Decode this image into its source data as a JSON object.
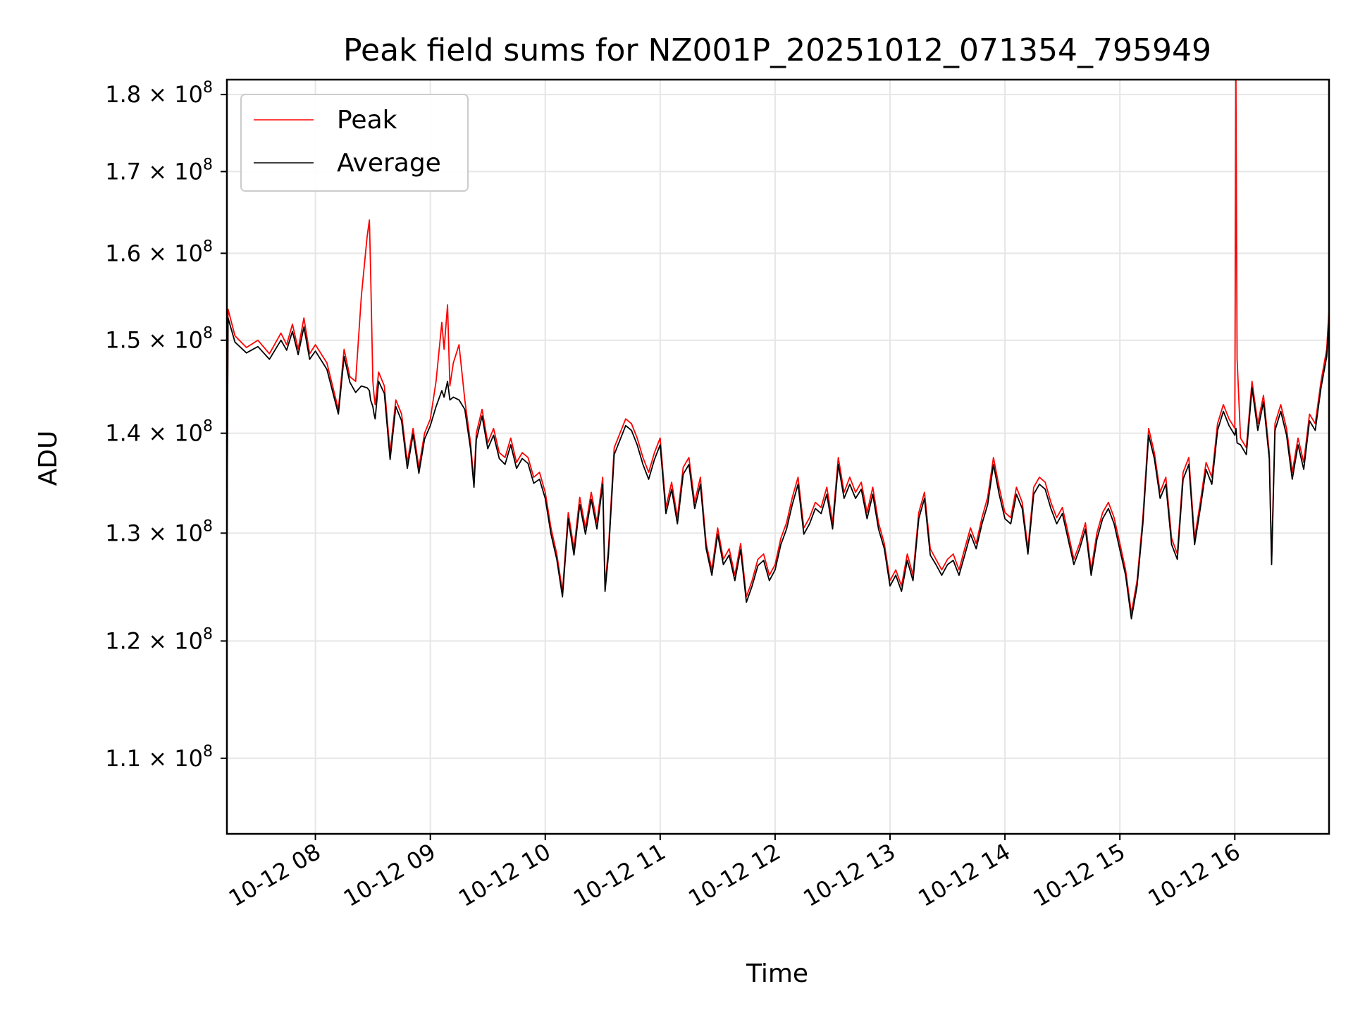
{
  "chart_data": {
    "type": "line",
    "title": "Peak field sums for NZ001P_20251012_071354_795949",
    "xlabel": "Time",
    "ylabel": "ADU",
    "yscale": "log",
    "ylim": [
      104000000,
      182000000
    ],
    "xlim_hours": [
      7.23,
      16.82
    ],
    "grid": true,
    "legend_position": "top-left",
    "x_ticks": [
      {
        "hour": 8,
        "label": "10-12 08"
      },
      {
        "hour": 9,
        "label": "10-12 09"
      },
      {
        "hour": 10,
        "label": "10-12 10"
      },
      {
        "hour": 11,
        "label": "10-12 11"
      },
      {
        "hour": 12,
        "label": "10-12 12"
      },
      {
        "hour": 13,
        "label": "10-12 13"
      },
      {
        "hour": 14,
        "label": "10-12 14"
      },
      {
        "hour": 15,
        "label": "10-12 15"
      },
      {
        "hour": 16,
        "label": "10-12 16"
      }
    ],
    "y_ticks": [
      {
        "value": 110000000,
        "mantissa": "1.1",
        "exponent": "8"
      },
      {
        "value": 120000000,
        "mantissa": "1.2",
        "exponent": "8"
      },
      {
        "value": 130000000,
        "mantissa": "1.3",
        "exponent": "8"
      },
      {
        "value": 140000000,
        "mantissa": "1.4",
        "exponent": "8"
      },
      {
        "value": 150000000,
        "mantissa": "1.5",
        "exponent": "8"
      },
      {
        "value": 160000000,
        "mantissa": "1.6",
        "exponent": "8"
      },
      {
        "value": 170000000,
        "mantissa": "1.7",
        "exponent": "8"
      },
      {
        "value": 180000000,
        "mantissa": "1.8",
        "exponent": "8"
      }
    ],
    "series": [
      {
        "name": "Peak",
        "color": "#ff0000",
        "x_hours": [
          7.23,
          7.24,
          7.3,
          7.4,
          7.5,
          7.6,
          7.7,
          7.75,
          7.8,
          7.85,
          7.9,
          7.95,
          8.0,
          8.1,
          8.15,
          8.2,
          8.25,
          8.3,
          8.35,
          8.4,
          8.45,
          8.47,
          8.48,
          8.5,
          8.51,
          8.52,
          8.55,
          8.6,
          8.65,
          8.7,
          8.75,
          8.8,
          8.85,
          8.9,
          8.95,
          9.0,
          9.05,
          9.1,
          9.12,
          9.15,
          9.17,
          9.2,
          9.25,
          9.3,
          9.35,
          9.38,
          9.4,
          9.45,
          9.5,
          9.55,
          9.6,
          9.65,
          9.7,
          9.75,
          9.8,
          9.85,
          9.9,
          9.95,
          10.0,
          10.05,
          10.1,
          10.15,
          10.2,
          10.25,
          10.3,
          10.35,
          10.4,
          10.45,
          10.5,
          10.52,
          10.55,
          10.6,
          10.65,
          10.7,
          10.75,
          10.8,
          10.85,
          10.9,
          10.95,
          11.0,
          11.05,
          11.1,
          11.15,
          11.2,
          11.25,
          11.3,
          11.35,
          11.4,
          11.45,
          11.5,
          11.55,
          11.6,
          11.65,
          11.7,
          11.75,
          11.8,
          11.85,
          11.9,
          11.95,
          12.0,
          12.05,
          12.1,
          12.15,
          12.2,
          12.25,
          12.3,
          12.35,
          12.4,
          12.45,
          12.5,
          12.55,
          12.6,
          12.65,
          12.7,
          12.75,
          12.8,
          12.85,
          12.9,
          12.95,
          13.0,
          13.05,
          13.1,
          13.15,
          13.2,
          13.25,
          13.3,
          13.35,
          13.4,
          13.45,
          13.5,
          13.55,
          13.6,
          13.65,
          13.7,
          13.75,
          13.8,
          13.85,
          13.9,
          13.95,
          14.0,
          14.05,
          14.1,
          14.15,
          14.2,
          14.25,
          14.3,
          14.35,
          14.4,
          14.45,
          14.5,
          14.55,
          14.6,
          14.65,
          14.7,
          14.75,
          14.8,
          14.85,
          14.9,
          14.95,
          15.0,
          15.05,
          15.1,
          15.15,
          15.2,
          15.25,
          15.3,
          15.35,
          15.4,
          15.45,
          15.5,
          15.55,
          15.6,
          15.65,
          15.7,
          15.75,
          15.8,
          15.85,
          15.9,
          15.95,
          16.0,
          16.01,
          16.02,
          16.05,
          16.1,
          16.15,
          16.2,
          16.25,
          16.3,
          16.32,
          16.35,
          16.4,
          16.45,
          16.5,
          16.55,
          16.6,
          16.65,
          16.7,
          16.75,
          16.8,
          16.82
        ],
        "values": [
          128000000,
          153500000,
          150500000,
          149200000,
          150000000,
          148500000,
          150800000,
          149500000,
          151800000,
          149000000,
          152500000,
          148500000,
          149500000,
          147500000,
          145000000,
          142500000,
          149000000,
          146000000,
          145500000,
          155000000,
          162000000,
          164000000,
          158000000,
          145500000,
          144000000,
          143000000,
          146500000,
          145000000,
          138000000,
          143500000,
          142000000,
          137000000,
          140500000,
          136500000,
          140000000,
          141500000,
          145500000,
          152000000,
          149000000,
          154000000,
          145000000,
          147500000,
          149500000,
          143500000,
          139000000,
          135000000,
          140000000,
          142500000,
          139000000,
          140500000,
          138000000,
          137500000,
          139500000,
          137000000,
          138000000,
          137500000,
          135500000,
          136000000,
          134000000,
          130500000,
          128000000,
          124500000,
          132000000,
          128500000,
          133500000,
          130500000,
          134000000,
          131000000,
          135500000,
          125000000,
          128500000,
          138500000,
          140000000,
          141500000,
          141000000,
          139500000,
          137500000,
          136000000,
          138000000,
          139500000,
          132500000,
          135000000,
          131500000,
          136500000,
          137500000,
          133000000,
          135500000,
          129000000,
          126500000,
          130500000,
          127500000,
          128500000,
          126000000,
          129000000,
          124000000,
          125500000,
          127500000,
          128000000,
          126000000,
          127000000,
          129500000,
          131000000,
          133500000,
          135500000,
          130500000,
          131500000,
          133000000,
          132500000,
          134500000,
          131000000,
          137500000,
          134000000,
          135500000,
          134000000,
          135000000,
          132000000,
          134500000,
          131000000,
          129000000,
          125500000,
          126500000,
          125000000,
          128000000,
          126000000,
          132000000,
          134000000,
          128500000,
          127500000,
          126500000,
          127500000,
          128000000,
          126500000,
          128500000,
          130500000,
          129000000,
          131500000,
          133500000,
          137500000,
          134500000,
          132000000,
          131500000,
          134500000,
          133000000,
          128500000,
          134500000,
          135500000,
          135000000,
          133000000,
          131500000,
          132500000,
          130000000,
          127500000,
          129000000,
          131000000,
          126500000,
          130000000,
          132000000,
          133000000,
          131500000,
          129000000,
          126500000,
          122500000,
          125500000,
          131500000,
          140500000,
          138000000,
          134000000,
          135500000,
          129500000,
          128000000,
          136000000,
          137500000,
          129500000,
          133000000,
          137000000,
          135500000,
          141000000,
          143000000,
          141500000,
          140500000,
          182000000,
          148000000,
          139500000,
          138500000,
          145500000,
          141000000,
          144000000,
          138000000,
          127500000,
          141000000,
          143000000,
          140500000,
          136000000,
          139500000,
          137000000,
          142000000,
          141000000,
          145500000,
          149000000,
          153500000
        ]
      },
      {
        "name": "Average",
        "color": "#000000",
        "x_hours": [
          7.23,
          7.24,
          7.3,
          7.4,
          7.5,
          7.6,
          7.7,
          7.75,
          7.8,
          7.85,
          7.9,
          7.95,
          8.0,
          8.1,
          8.15,
          8.2,
          8.25,
          8.3,
          8.35,
          8.4,
          8.45,
          8.47,
          8.48,
          8.5,
          8.51,
          8.52,
          8.55,
          8.6,
          8.65,
          8.7,
          8.75,
          8.8,
          8.85,
          8.9,
          8.95,
          9.0,
          9.05,
          9.1,
          9.12,
          9.15,
          9.17,
          9.2,
          9.25,
          9.3,
          9.35,
          9.38,
          9.4,
          9.45,
          9.5,
          9.55,
          9.6,
          9.65,
          9.7,
          9.75,
          9.8,
          9.85,
          9.9,
          9.95,
          10.0,
          10.05,
          10.1,
          10.15,
          10.2,
          10.25,
          10.3,
          10.35,
          10.4,
          10.45,
          10.5,
          10.52,
          10.55,
          10.6,
          10.65,
          10.7,
          10.75,
          10.8,
          10.85,
          10.9,
          10.95,
          11.0,
          11.05,
          11.1,
          11.15,
          11.2,
          11.25,
          11.3,
          11.35,
          11.4,
          11.45,
          11.5,
          11.55,
          11.6,
          11.65,
          11.7,
          11.75,
          11.8,
          11.85,
          11.9,
          11.95,
          12.0,
          12.05,
          12.1,
          12.15,
          12.2,
          12.25,
          12.3,
          12.35,
          12.4,
          12.45,
          12.5,
          12.55,
          12.6,
          12.65,
          12.7,
          12.75,
          12.8,
          12.85,
          12.9,
          12.95,
          13.0,
          13.05,
          13.1,
          13.15,
          13.2,
          13.25,
          13.3,
          13.35,
          13.4,
          13.45,
          13.5,
          13.55,
          13.6,
          13.65,
          13.7,
          13.75,
          13.8,
          13.85,
          13.9,
          13.95,
          14.0,
          14.05,
          14.1,
          14.15,
          14.2,
          14.25,
          14.3,
          14.35,
          14.4,
          14.45,
          14.5,
          14.55,
          14.6,
          14.65,
          14.7,
          14.75,
          14.8,
          14.85,
          14.9,
          14.95,
          15.0,
          15.05,
          15.1,
          15.15,
          15.2,
          15.25,
          15.3,
          15.35,
          15.4,
          15.45,
          15.5,
          15.55,
          15.6,
          15.65,
          15.7,
          15.75,
          15.8,
          15.85,
          15.9,
          15.95,
          16.0,
          16.01,
          16.02,
          16.05,
          16.1,
          16.15,
          16.2,
          16.25,
          16.3,
          16.32,
          16.35,
          16.4,
          16.45,
          16.5,
          16.55,
          16.6,
          16.65,
          16.7,
          16.75,
          16.8,
          16.82
        ],
        "values": [
          127500000,
          152500000,
          149800000,
          148600000,
          149300000,
          147900000,
          150000000,
          148900000,
          151000000,
          148400000,
          151500000,
          147900000,
          148800000,
          146800000,
          144400000,
          142000000,
          148200000,
          145400000,
          144300000,
          145000000,
          144800000,
          144500000,
          143500000,
          142800000,
          142000000,
          141500000,
          145500000,
          144200000,
          137300000,
          142800000,
          141300000,
          136400000,
          139900000,
          135900000,
          139400000,
          140800000,
          142800000,
          144500000,
          143800000,
          145500000,
          143500000,
          143800000,
          143500000,
          142500000,
          138400000,
          134500000,
          139300000,
          141800000,
          138400000,
          139800000,
          137400000,
          136800000,
          138800000,
          136400000,
          137400000,
          136900000,
          134900000,
          135300000,
          133400000,
          129900000,
          127500000,
          124000000,
          131400000,
          127900000,
          132800000,
          129900000,
          133300000,
          130400000,
          134800000,
          124500000,
          127900000,
          137800000,
          139300000,
          140800000,
          140300000,
          138800000,
          136800000,
          135300000,
          137300000,
          138800000,
          131900000,
          134300000,
          130900000,
          135800000,
          136800000,
          132400000,
          134800000,
          128500000,
          126000000,
          129900000,
          127000000,
          127900000,
          125500000,
          128400000,
          123500000,
          125000000,
          126900000,
          127400000,
          125500000,
          126500000,
          128900000,
          130400000,
          132800000,
          134800000,
          129900000,
          130900000,
          132400000,
          131900000,
          133800000,
          130400000,
          136800000,
          133400000,
          134800000,
          133400000,
          134300000,
          131400000,
          133800000,
          130400000,
          128500000,
          125000000,
          126000000,
          124500000,
          127400000,
          125500000,
          131400000,
          133400000,
          127900000,
          127000000,
          126000000,
          127000000,
          127400000,
          126000000,
          127900000,
          129900000,
          128500000,
          130900000,
          132800000,
          136800000,
          133800000,
          131400000,
          130900000,
          133800000,
          132400000,
          128000000,
          133800000,
          134800000,
          134300000,
          132400000,
          130900000,
          131900000,
          129400000,
          127000000,
          128500000,
          130400000,
          126000000,
          129400000,
          131400000,
          132400000,
          130900000,
          128400000,
          126000000,
          122000000,
          125000000,
          130900000,
          139800000,
          137400000,
          133400000,
          134800000,
          128900000,
          127500000,
          135300000,
          136800000,
          128900000,
          132400000,
          136300000,
          134800000,
          140300000,
          142300000,
          140800000,
          139800000,
          140500000,
          139000000,
          138800000,
          137800000,
          144800000,
          140300000,
          143300000,
          137400000,
          127000000,
          140300000,
          142300000,
          139800000,
          135300000,
          138800000,
          136300000,
          141300000,
          140300000,
          144800000,
          148200000,
          152500000
        ]
      }
    ]
  }
}
